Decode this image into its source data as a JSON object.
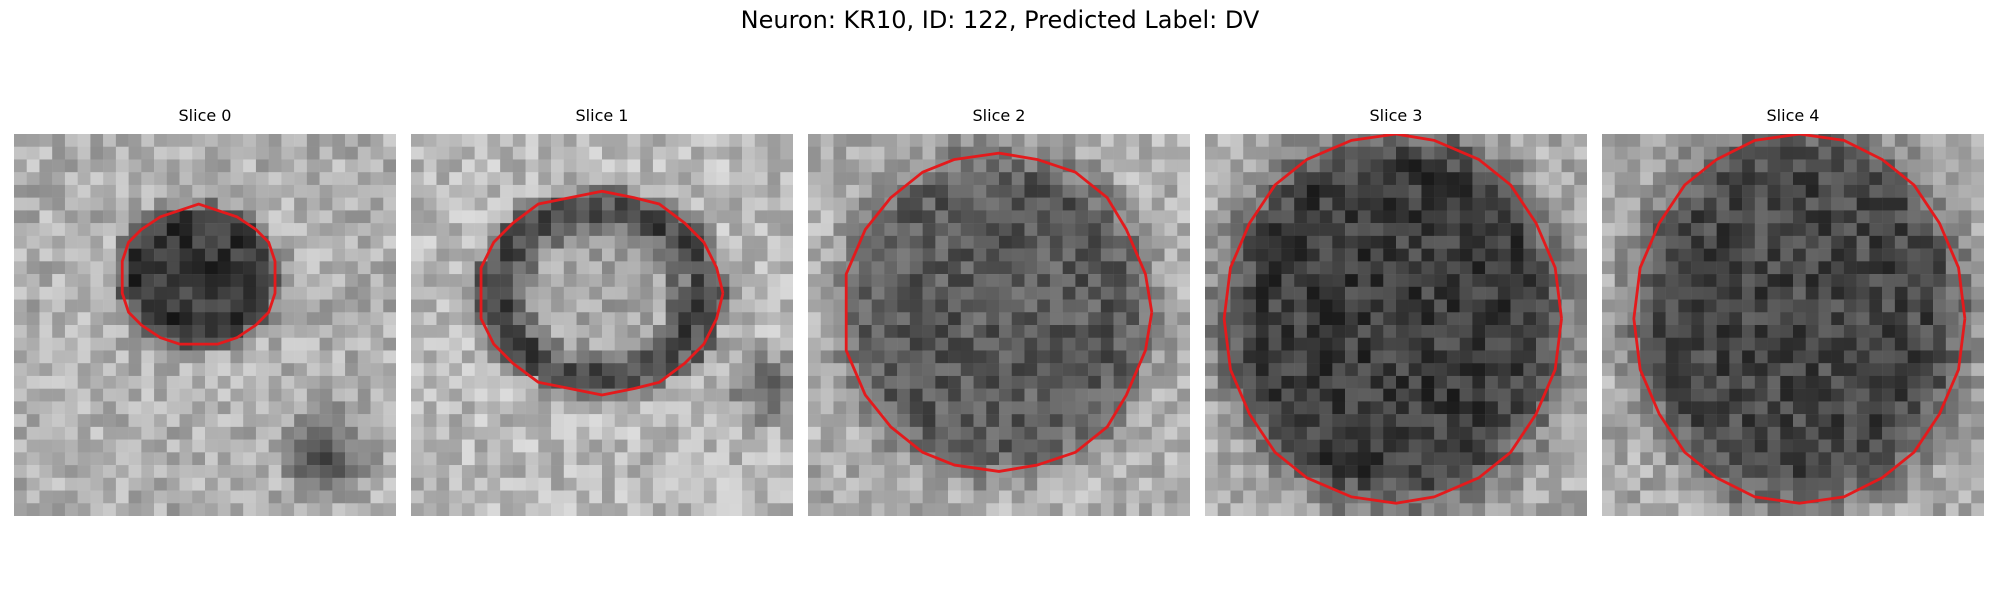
{
  "figure": {
    "title": "Neuron: KR10, ID: 122, Predicted Label: DV"
  },
  "colors": {
    "contour": "#e41a1c",
    "background": "#ffffff"
  },
  "panels": [
    {
      "title": "Slice 0",
      "roi": {
        "cx": 14.5,
        "cy": 11.2,
        "rx": 6.2,
        "ry": 5.5,
        "dark_inside": 55,
        "bright_outside": 175,
        "seed": 11,
        "clip": false
      },
      "extra_dark_blobs": [
        {
          "cx": 24.5,
          "cy": 25,
          "r": 3.5
        }
      ]
    },
    {
      "title": "Slice 1",
      "roi": {
        "cx": 14.8,
        "cy": 12.5,
        "rx": 9.5,
        "ry": 7.8,
        "dark_inside": 120,
        "bright_outside": 185,
        "seed": 23,
        "clip": false,
        "ring": true
      },
      "extra_dark_blobs": [
        {
          "cx": 28,
          "cy": 20,
          "r": 3
        }
      ]
    },
    {
      "title": "Slice 2",
      "roi": {
        "cx": 14.8,
        "cy": 14,
        "rx": 12,
        "ry": 12.5,
        "dark_inside": 90,
        "bright_outside": 175,
        "seed": 37,
        "clip": false
      },
      "extra_dark_blobs": []
    },
    {
      "title": "Slice 3",
      "roi": {
        "cx": 14.8,
        "cy": 14.5,
        "rx": 13.2,
        "ry": 14.5,
        "dark_inside": 60,
        "bright_outside": 170,
        "seed": 41,
        "clip": true
      },
      "extra_dark_blobs": []
    },
    {
      "title": "Slice 4",
      "roi": {
        "cx": 15.5,
        "cy": 14.5,
        "rx": 12.8,
        "ry": 14.5,
        "dark_inside": 70,
        "bright_outside": 170,
        "seed": 53,
        "clip": true
      },
      "extra_dark_blobs": []
    }
  ]
}
